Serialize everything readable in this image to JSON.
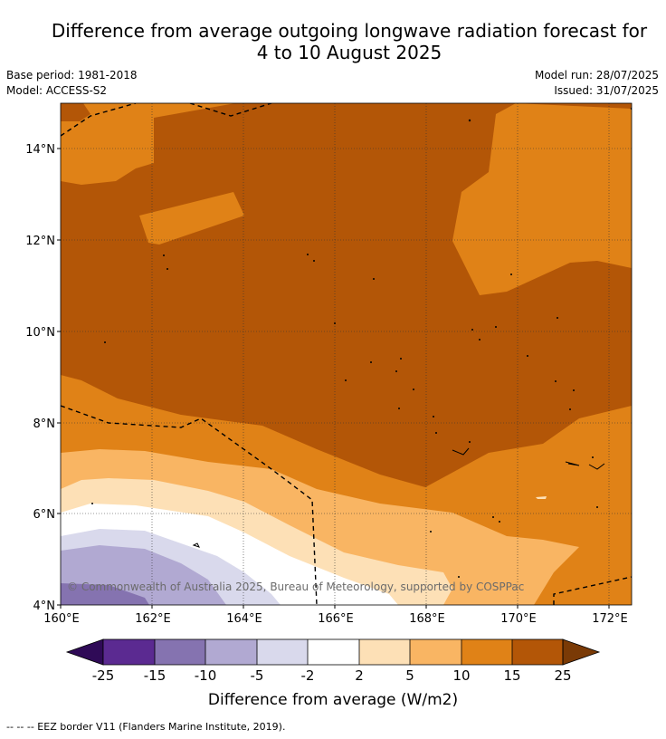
{
  "title": {
    "line1": "Difference from average outgoing longwave radiation forecast for",
    "line2": "4 to 10 August 2025"
  },
  "meta": {
    "base_period": "Base period: 1981-2018",
    "model": "Model: ACCESS-S2",
    "model_run": "Model run: 28/07/2025",
    "issued": "Issued: 31/07/2025"
  },
  "axes": {
    "lon_labels": [
      "160°E",
      "162°E",
      "164°E",
      "166°E",
      "168°E",
      "170°E",
      "172°E"
    ],
    "lat_labels": [
      "4°N",
      "6°N",
      "8°N",
      "10°N",
      "12°N",
      "14°N"
    ]
  },
  "copyright": "© Commonwealth of Australia 2025, Bureau of Meteorology, supported by COSPPac",
  "colorbar": {
    "ticks": [
      "-25",
      "-15",
      "-10",
      "-5",
      "-2",
      "2",
      "5",
      "10",
      "15",
      "25"
    ],
    "colors": [
      "#5b2a91",
      "#8573b0",
      "#b1a9d2",
      "#d9d9ec",
      "#ffffff",
      "#fde0b6",
      "#f9b563",
      "#e08217",
      "#b35607"
    ],
    "under_color": "#2f0a57",
    "over_color": "#7a3a06",
    "label": "Difference from average (W/m2)"
  },
  "legend_line": "--  --  -- EEZ border V11 (Flanders Marine Institute, 2019)."
}
